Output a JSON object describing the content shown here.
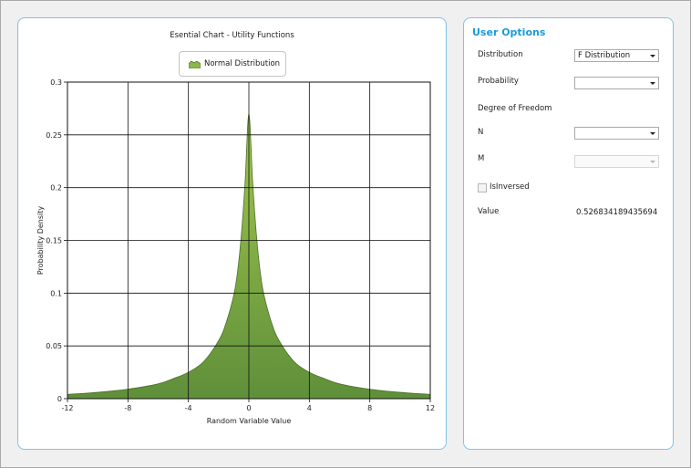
{
  "chart": {
    "title": "Esential Chart - Utility Functions",
    "legend_label": "Normal Distribution",
    "xlabel": "Random Variable Value",
    "ylabel": "Probability Density"
  },
  "chart_data": {
    "type": "area",
    "title": "Esential Chart - Utility Functions",
    "xlabel": "Random Variable Value",
    "ylabel": "Probability Density",
    "xlim": [
      -12,
      12
    ],
    "ylim": [
      0,
      0.3
    ],
    "xticks": [
      -12,
      -8,
      -4,
      0,
      4,
      8,
      12
    ],
    "yticks": [
      0,
      0.05,
      0.1,
      0.15,
      0.2,
      0.25,
      0.3
    ],
    "grid": true,
    "legend_position": "top-center",
    "series": [
      {
        "name": "Normal Distribution",
        "color_top": "#a2c84e",
        "color_bottom": "#5f8f3a",
        "x": [
          -12,
          -10,
          -8,
          -6,
          -5,
          -4,
          -3,
          -2,
          -1.5,
          -1,
          -0.75,
          -0.5,
          -0.25,
          0,
          0.25,
          0.5,
          0.75,
          1,
          1.5,
          2,
          3,
          4,
          5,
          6,
          8,
          10,
          12
        ],
        "y": [
          0.004,
          0.006,
          0.009,
          0.014,
          0.019,
          0.025,
          0.035,
          0.055,
          0.072,
          0.098,
          0.12,
          0.155,
          0.205,
          0.27,
          0.205,
          0.155,
          0.12,
          0.098,
          0.072,
          0.055,
          0.035,
          0.025,
          0.019,
          0.014,
          0.009,
          0.006,
          0.004
        ]
      }
    ]
  },
  "options": {
    "title": "User Options",
    "distribution_label": "Distribution",
    "distribution_value": "F Distribution",
    "probability_label": "Probability",
    "probability_value": "",
    "dof_label": "Degree of Freedom",
    "n_label": "N",
    "n_value": "",
    "m_label": "M",
    "m_value": "",
    "isinversed_label": "IsInversed",
    "isinversed_checked": false,
    "value_label": "Value",
    "value_result": "0.526834189435694"
  }
}
